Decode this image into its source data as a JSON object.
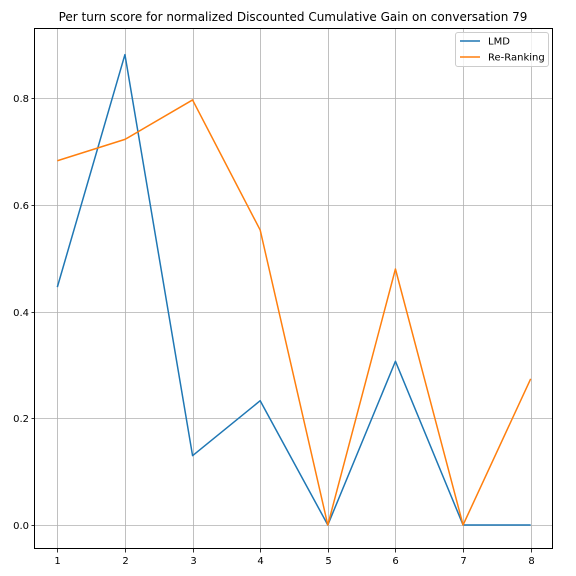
{
  "chart_data": {
    "type": "line",
    "title": "Per turn score for normalized Discounted Cumulative Gain on conversation 79",
    "xlabel": "",
    "ylabel": "",
    "x": [
      1,
      2,
      3,
      4,
      5,
      6,
      7,
      8
    ],
    "xticks": [
      "1",
      "2",
      "3",
      "4",
      "5",
      "6",
      "7",
      "8"
    ],
    "yticks": [
      "0.0",
      "0.2",
      "0.4",
      "0.6",
      "0.8"
    ],
    "ytick_values": [
      0.0,
      0.2,
      0.4,
      0.6,
      0.8
    ],
    "xlim": [
      0.67,
      8.33
    ],
    "ylim": [
      -0.045,
      0.93
    ],
    "grid": true,
    "legend_position": "top-right",
    "series": [
      {
        "name": "LMD",
        "color": "#1f77b4",
        "values": [
          0.446,
          0.882,
          0.13,
          0.233,
          0.0,
          0.307,
          0.0,
          0.0
        ]
      },
      {
        "name": "Re-Ranking",
        "color": "#ff7f0e",
        "values": [
          0.683,
          0.723,
          0.797,
          0.553,
          0.0,
          0.48,
          0.0,
          0.274
        ]
      }
    ]
  }
}
